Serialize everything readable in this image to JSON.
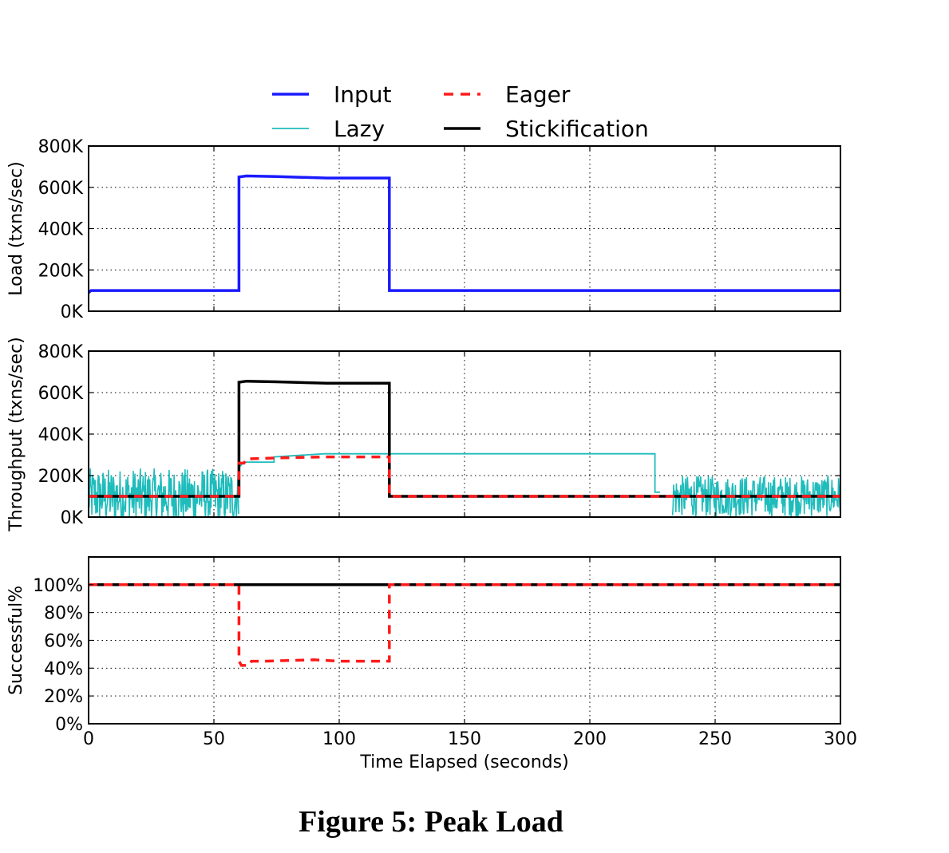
{
  "figure": {
    "caption": "Figure 5: Peak Load"
  },
  "colors": {
    "Input": "#1a1aff",
    "Lazy": "#1fbcbc",
    "Eager": "#ff1a1a",
    "Stickification": "#000000"
  },
  "legend": [
    {
      "name": "Input",
      "style": "solid-thick"
    },
    {
      "name": "Eager",
      "style": "dashed"
    },
    {
      "name": "Lazy",
      "style": "solid-thin"
    },
    {
      "name": "Stickification",
      "style": "solid-thick"
    }
  ],
  "chart_data": [
    {
      "type": "line",
      "panel": "load",
      "ylabel": "Load (txns/sec)",
      "xlim": [
        0,
        300
      ],
      "ylim": [
        0,
        800000
      ],
      "yticks": [
        0,
        200000,
        400000,
        600000,
        800000
      ],
      "yticklabels": [
        "0K",
        "200K",
        "400K",
        "600K",
        "800K"
      ],
      "grid": true,
      "series": [
        {
          "name": "Input",
          "x": [
            0,
            1,
            60,
            60,
            63,
            75,
            95,
            110,
            120,
            120,
            300
          ],
          "y": [
            90000,
            100000,
            100000,
            650000,
            655000,
            652000,
            645000,
            645000,
            645000,
            100000,
            100000
          ]
        }
      ]
    },
    {
      "type": "line",
      "panel": "throughput",
      "ylabel": "Throughput (txns/sec)",
      "xlim": [
        0,
        300
      ],
      "ylim": [
        0,
        800000
      ],
      "yticks": [
        0,
        200000,
        400000,
        600000,
        800000
      ],
      "yticklabels": [
        "0K",
        "200K",
        "400K",
        "600K",
        "800K"
      ],
      "grid": true,
      "series": [
        {
          "name": "Stickification",
          "x": [
            0,
            60,
            60,
            63,
            75,
            95,
            120,
            120,
            300
          ],
          "y": [
            100000,
            100000,
            650000,
            655000,
            652000,
            645000,
            645000,
            100000,
            100000
          ]
        },
        {
          "name": "Eager",
          "x": [
            0,
            60,
            60,
            62,
            63,
            75,
            95,
            120,
            120,
            300
          ],
          "y": [
            100000,
            100000,
            260000,
            260000,
            280000,
            285000,
            290000,
            290000,
            100000,
            100000
          ]
        },
        {
          "name": "Lazy",
          "x": [
            60,
            62,
            74,
            74,
            94,
            226,
            226,
            228
          ],
          "y": [
            240000,
            265000,
            265000,
            290000,
            305000,
            305000,
            120000,
            120000
          ],
          "noise": [
            {
              "x_range": [
                0,
                60
              ],
              "center": 100000,
              "spread": 270000
            },
            {
              "x_range": [
                233,
                300
              ],
              "center": 100000,
              "spread": 200000
            }
          ]
        }
      ]
    },
    {
      "type": "line",
      "panel": "success",
      "ylabel": "Successful%",
      "xlabel": "Time Elapsed (seconds)",
      "xlim": [
        0,
        300
      ],
      "ylim": [
        0,
        120
      ],
      "xticks": [
        0,
        50,
        100,
        150,
        200,
        250,
        300
      ],
      "xticklabels": [
        "0",
        "50",
        "100",
        "150",
        "200",
        "250",
        "300"
      ],
      "yticks": [
        0,
        20,
        40,
        60,
        80,
        100
      ],
      "yticklabels": [
        "0%",
        "20%",
        "40%",
        "60%",
        "80%",
        "100%"
      ],
      "grid": true,
      "series": [
        {
          "name": "Lazy",
          "x": [
            0,
            300
          ],
          "y": [
            100,
            100
          ]
        },
        {
          "name": "Stickification",
          "x": [
            0,
            300
          ],
          "y": [
            100,
            100
          ]
        },
        {
          "name": "Eager",
          "x": [
            0,
            60,
            60,
            61,
            64,
            65,
            70,
            90,
            100,
            120,
            120,
            300
          ],
          "y": [
            100,
            100,
            45,
            42,
            42,
            45,
            45,
            46,
            45,
            45,
            100,
            100
          ]
        }
      ]
    }
  ]
}
